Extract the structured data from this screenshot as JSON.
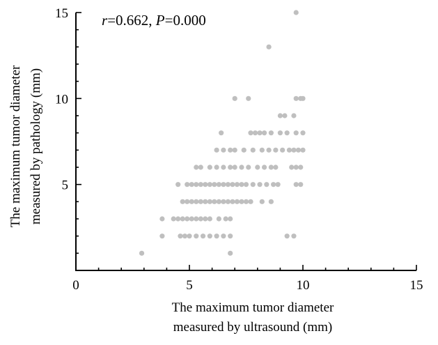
{
  "chart_data": {
    "type": "scatter",
    "title": "",
    "annotation": {
      "r_label": "r",
      "r_value": "=0.662, ",
      "p_label": "P",
      "p_value": "=0.000"
    },
    "xlabel": [
      "The maximum tumor diameter",
      "measured by ultrasound (mm)"
    ],
    "ylabel": [
      "The maximum tumor diameter",
      "measured by pathology (mm)"
    ],
    "xlim": [
      0,
      15
    ],
    "ylim": [
      0,
      15
    ],
    "xticks": [
      "0",
      "5",
      "10",
      "15"
    ],
    "yticks": [
      "5",
      "10",
      "15"
    ],
    "grid": false,
    "point_color": "#bfbfbf",
    "points": [
      [
        2.9,
        1
      ],
      [
        6.8,
        1
      ],
      [
        3.8,
        2
      ],
      [
        4.6,
        2
      ],
      [
        4.8,
        2
      ],
      [
        5.0,
        2
      ],
      [
        5.3,
        2
      ],
      [
        5.6,
        2
      ],
      [
        5.9,
        2
      ],
      [
        6.2,
        2
      ],
      [
        6.5,
        2
      ],
      [
        6.8,
        2
      ],
      [
        9.3,
        2
      ],
      [
        9.6,
        2
      ],
      [
        3.8,
        3
      ],
      [
        4.3,
        3
      ],
      [
        4.5,
        3
      ],
      [
        4.7,
        3
      ],
      [
        4.9,
        3
      ],
      [
        5.1,
        3
      ],
      [
        5.3,
        3
      ],
      [
        5.5,
        3
      ],
      [
        5.7,
        3
      ],
      [
        5.9,
        3
      ],
      [
        6.3,
        3
      ],
      [
        6.6,
        3
      ],
      [
        6.8,
        3
      ],
      [
        4.7,
        4
      ],
      [
        4.9,
        4
      ],
      [
        5.1,
        4
      ],
      [
        5.3,
        4
      ],
      [
        5.5,
        4
      ],
      [
        5.7,
        4
      ],
      [
        5.9,
        4
      ],
      [
        6.1,
        4
      ],
      [
        6.3,
        4
      ],
      [
        6.5,
        4
      ],
      [
        6.7,
        4
      ],
      [
        6.9,
        4
      ],
      [
        7.1,
        4
      ],
      [
        7.3,
        4
      ],
      [
        7.5,
        4
      ],
      [
        7.7,
        4
      ],
      [
        8.2,
        4
      ],
      [
        8.6,
        4
      ],
      [
        4.5,
        5
      ],
      [
        4.9,
        5
      ],
      [
        5.1,
        5
      ],
      [
        5.3,
        5
      ],
      [
        5.5,
        5
      ],
      [
        5.7,
        5
      ],
      [
        5.9,
        5
      ],
      [
        6.1,
        5
      ],
      [
        6.3,
        5
      ],
      [
        6.5,
        5
      ],
      [
        6.7,
        5
      ],
      [
        6.9,
        5
      ],
      [
        7.1,
        5
      ],
      [
        7.3,
        5
      ],
      [
        7.5,
        5
      ],
      [
        7.8,
        5
      ],
      [
        8.1,
        5
      ],
      [
        8.4,
        5
      ],
      [
        8.7,
        5
      ],
      [
        8.9,
        5
      ],
      [
        9.7,
        5
      ],
      [
        9.9,
        5
      ],
      [
        5.3,
        6
      ],
      [
        5.5,
        6
      ],
      [
        5.9,
        6
      ],
      [
        6.2,
        6
      ],
      [
        6.5,
        6
      ],
      [
        6.8,
        6
      ],
      [
        7.0,
        6
      ],
      [
        7.3,
        6
      ],
      [
        7.6,
        6
      ],
      [
        8.0,
        6
      ],
      [
        8.3,
        6
      ],
      [
        8.6,
        6
      ],
      [
        8.8,
        6
      ],
      [
        9.5,
        6
      ],
      [
        9.7,
        6
      ],
      [
        9.9,
        6
      ],
      [
        6.2,
        7
      ],
      [
        6.5,
        7
      ],
      [
        6.8,
        7
      ],
      [
        7.0,
        7
      ],
      [
        7.4,
        7
      ],
      [
        7.8,
        7
      ],
      [
        8.2,
        7
      ],
      [
        8.5,
        7
      ],
      [
        8.8,
        7
      ],
      [
        9.1,
        7
      ],
      [
        9.4,
        7
      ],
      [
        9.6,
        7
      ],
      [
        9.8,
        7
      ],
      [
        10.0,
        7
      ],
      [
        6.4,
        8
      ],
      [
        7.7,
        8
      ],
      [
        7.9,
        8
      ],
      [
        8.1,
        8
      ],
      [
        8.3,
        8
      ],
      [
        8.6,
        8
      ],
      [
        9.0,
        8
      ],
      [
        9.3,
        8
      ],
      [
        9.7,
        8
      ],
      [
        10.0,
        8
      ],
      [
        9.0,
        9
      ],
      [
        9.2,
        9
      ],
      [
        9.6,
        9
      ],
      [
        7.0,
        10
      ],
      [
        7.6,
        10
      ],
      [
        9.7,
        10
      ],
      [
        9.9,
        10
      ],
      [
        10.0,
        10
      ],
      [
        8.5,
        13
      ],
      [
        9.7,
        15
      ]
    ]
  }
}
